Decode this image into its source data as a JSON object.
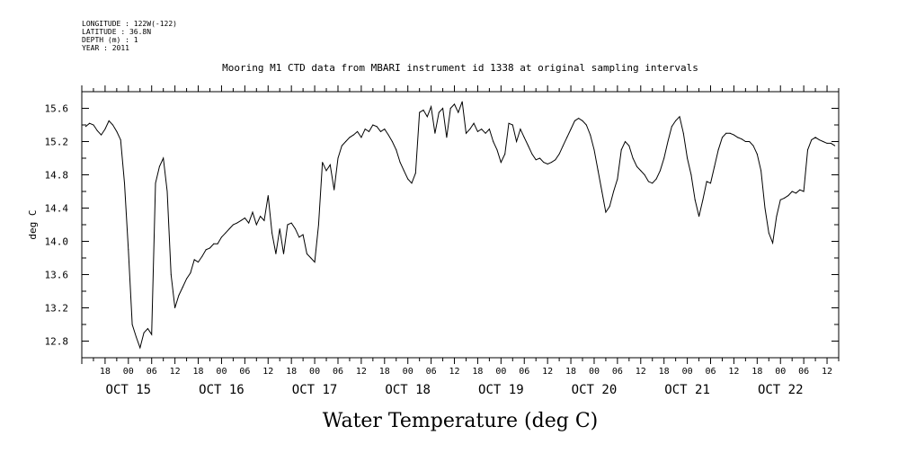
{
  "metadata": [
    "LONGITUDE : 122W(-122)",
    "LATITUDE : 36.8N",
    "DEPTH (m) : 1",
    "YEAR : 2011"
  ],
  "caption": "Water Temperature (deg C)",
  "chart_data": {
    "type": "line",
    "title": "Mooring M1 CTD data from MBARI instrument id 1338 at original sampling intervals",
    "xlabel": "",
    "ylabel": "deg C",
    "x_unit": "date-hour (2011)",
    "xlim": [
      "OCT 14 12:00",
      "OCT 22 15:00"
    ],
    "ylim": [
      12.6,
      15.8
    ],
    "y_ticks": [
      "12.8",
      "13.2",
      "13.6",
      "14.0",
      "14.4",
      "14.8",
      "15.2",
      "15.6"
    ],
    "hour_tick_labels": [
      "18",
      "00",
      "06",
      "12",
      "18",
      "00",
      "06",
      "12",
      "18",
      "00",
      "06",
      "12",
      "18",
      "00",
      "06",
      "12",
      "18",
      "00",
      "06",
      "12",
      "18",
      "00",
      "06",
      "12",
      "18",
      "00",
      "06",
      "12",
      "18",
      "00",
      "06",
      "12"
    ],
    "day_labels": [
      "OCT 15",
      "OCT 16",
      "OCT 17",
      "OCT 18",
      "OCT 19",
      "OCT 20",
      "OCT 21",
      "OCT 22"
    ],
    "grid": false,
    "series": [
      {
        "values": [
          [
            "OCT 14 13:00",
            15.38
          ],
          [
            "OCT 14 14:00",
            15.42
          ],
          [
            "OCT 14 15:00",
            15.4
          ],
          [
            "OCT 14 16:00",
            15.33
          ],
          [
            "OCT 14 17:00",
            15.28
          ],
          [
            "OCT 14 18:00",
            15.35
          ],
          [
            "OCT 14 19:00",
            15.45
          ],
          [
            "OCT 14 20:00",
            15.4
          ],
          [
            "OCT 14 21:00",
            15.32
          ],
          [
            "OCT 14 22:00",
            15.22
          ],
          [
            "OCT 14 23:00",
            14.7
          ],
          [
            "OCT 15 00:00",
            13.9
          ],
          [
            "OCT 15 01:00",
            13.0
          ],
          [
            "OCT 15 02:00",
            12.85
          ],
          [
            "OCT 15 03:00",
            12.72
          ],
          [
            "OCT 15 04:00",
            12.9
          ],
          [
            "OCT 15 05:00",
            12.95
          ],
          [
            "OCT 15 06:00",
            12.88
          ],
          [
            "OCT 15 07:00",
            14.7
          ],
          [
            "OCT 15 08:00",
            14.9
          ],
          [
            "OCT 15 09:00",
            15.0
          ],
          [
            "OCT 15 10:00",
            14.6
          ],
          [
            "OCT 15 11:00",
            13.6
          ],
          [
            "OCT 15 12:00",
            13.2
          ],
          [
            "OCT 15 13:00",
            13.35
          ],
          [
            "OCT 15 14:00",
            13.45
          ],
          [
            "OCT 15 15:00",
            13.55
          ],
          [
            "OCT 15 16:00",
            13.62
          ],
          [
            "OCT 15 17:00",
            13.78
          ],
          [
            "OCT 15 18:00",
            13.75
          ],
          [
            "OCT 15 19:00",
            13.82
          ],
          [
            "OCT 15 20:00",
            13.9
          ],
          [
            "OCT 15 21:00",
            13.92
          ],
          [
            "OCT 15 22:00",
            13.97
          ],
          [
            "OCT 15 23:00",
            13.97
          ],
          [
            "OCT 16 00:00",
            14.05
          ],
          [
            "OCT 16 01:00",
            14.1
          ],
          [
            "OCT 16 02:00",
            14.15
          ],
          [
            "OCT 16 03:00",
            14.2
          ],
          [
            "OCT 16 04:00",
            14.22
          ],
          [
            "OCT 16 05:00",
            14.25
          ],
          [
            "OCT 16 06:00",
            14.28
          ],
          [
            "OCT 16 07:00",
            14.22
          ],
          [
            "OCT 16 08:00",
            14.35
          ],
          [
            "OCT 16 09:00",
            14.2
          ],
          [
            "OCT 16 10:00",
            14.3
          ],
          [
            "OCT 16 11:00",
            14.25
          ],
          [
            "OCT 16 12:00",
            14.55
          ],
          [
            "OCT 16 13:00",
            14.1
          ],
          [
            "OCT 16 14:00",
            13.85
          ],
          [
            "OCT 16 15:00",
            14.15
          ],
          [
            "OCT 16 16:00",
            13.85
          ],
          [
            "OCT 16 17:00",
            14.2
          ],
          [
            "OCT 16 18:00",
            14.22
          ],
          [
            "OCT 16 19:00",
            14.15
          ],
          [
            "OCT 16 20:00",
            14.05
          ],
          [
            "OCT 16 21:00",
            14.08
          ],
          [
            "OCT 16 22:00",
            13.85
          ],
          [
            "OCT 16 23:00",
            13.8
          ],
          [
            "OCT 17 00:00",
            13.75
          ],
          [
            "OCT 17 01:00",
            14.2
          ],
          [
            "OCT 17 02:00",
            14.95
          ],
          [
            "OCT 17 03:00",
            14.85
          ],
          [
            "OCT 17 04:00",
            14.92
          ],
          [
            "OCT 17 05:00",
            14.62
          ],
          [
            "OCT 17 06:00",
            15.0
          ],
          [
            "OCT 17 07:00",
            15.15
          ],
          [
            "OCT 17 08:00",
            15.2
          ],
          [
            "OCT 17 09:00",
            15.25
          ],
          [
            "OCT 17 10:00",
            15.28
          ],
          [
            "OCT 17 11:00",
            15.32
          ],
          [
            "OCT 17 12:00",
            15.25
          ],
          [
            "OCT 17 13:00",
            15.35
          ],
          [
            "OCT 17 14:00",
            15.32
          ],
          [
            "OCT 17 15:00",
            15.4
          ],
          [
            "OCT 17 16:00",
            15.38
          ],
          [
            "OCT 17 17:00",
            15.32
          ],
          [
            "OCT 17 18:00",
            15.35
          ],
          [
            "OCT 17 19:00",
            15.28
          ],
          [
            "OCT 17 20:00",
            15.2
          ],
          [
            "OCT 17 21:00",
            15.1
          ],
          [
            "OCT 17 22:00",
            14.95
          ],
          [
            "OCT 17 23:00",
            14.85
          ],
          [
            "OCT 18 00:00",
            14.75
          ],
          [
            "OCT 18 01:00",
            14.7
          ],
          [
            "OCT 18 02:00",
            14.82
          ],
          [
            "OCT 18 03:00",
            15.55
          ],
          [
            "OCT 18 04:00",
            15.58
          ],
          [
            "OCT 18 05:00",
            15.5
          ],
          [
            "OCT 18 06:00",
            15.62
          ],
          [
            "OCT 18 07:00",
            15.3
          ],
          [
            "OCT 18 08:00",
            15.55
          ],
          [
            "OCT 18 09:00",
            15.6
          ],
          [
            "OCT 18 10:00",
            15.25
          ],
          [
            "OCT 18 11:00",
            15.6
          ],
          [
            "OCT 18 12:00",
            15.65
          ],
          [
            "OCT 18 13:00",
            15.55
          ],
          [
            "OCT 18 14:00",
            15.68
          ],
          [
            "OCT 18 15:00",
            15.3
          ],
          [
            "OCT 18 16:00",
            15.35
          ],
          [
            "OCT 18 17:00",
            15.42
          ],
          [
            "OCT 18 18:00",
            15.32
          ],
          [
            "OCT 18 19:00",
            15.35
          ],
          [
            "OCT 18 20:00",
            15.3
          ],
          [
            "OCT 18 21:00",
            15.35
          ],
          [
            "OCT 18 22:00",
            15.2
          ],
          [
            "OCT 18 23:00",
            15.1
          ],
          [
            "OCT 19 00:00",
            14.95
          ],
          [
            "OCT 19 01:00",
            15.05
          ],
          [
            "OCT 19 02:00",
            15.42
          ],
          [
            "OCT 19 03:00",
            15.4
          ],
          [
            "OCT 19 04:00",
            15.2
          ],
          [
            "OCT 19 05:00",
            15.35
          ],
          [
            "OCT 19 06:00",
            15.25
          ],
          [
            "OCT 19 07:00",
            15.15
          ],
          [
            "OCT 19 08:00",
            15.05
          ],
          [
            "OCT 19 09:00",
            14.98
          ],
          [
            "OCT 19 10:00",
            15.0
          ],
          [
            "OCT 19 11:00",
            14.95
          ],
          [
            "OCT 19 12:00",
            14.93
          ],
          [
            "OCT 19 13:00",
            14.95
          ],
          [
            "OCT 19 14:00",
            14.98
          ],
          [
            "OCT 19 15:00",
            15.05
          ],
          [
            "OCT 19 16:00",
            15.15
          ],
          [
            "OCT 19 17:00",
            15.25
          ],
          [
            "OCT 19 18:00",
            15.35
          ],
          [
            "OCT 19 19:00",
            15.45
          ],
          [
            "OCT 19 20:00",
            15.48
          ],
          [
            "OCT 19 21:00",
            15.45
          ],
          [
            "OCT 19 22:00",
            15.4
          ],
          [
            "OCT 19 23:00",
            15.28
          ],
          [
            "OCT 20 00:00",
            15.1
          ],
          [
            "OCT 20 01:00",
            14.85
          ],
          [
            "OCT 20 02:00",
            14.6
          ],
          [
            "OCT 20 03:00",
            14.35
          ],
          [
            "OCT 20 04:00",
            14.42
          ],
          [
            "OCT 20 05:00",
            14.6
          ],
          [
            "OCT 20 06:00",
            14.75
          ],
          [
            "OCT 20 07:00",
            15.1
          ],
          [
            "OCT 20 08:00",
            15.2
          ],
          [
            "OCT 20 09:00",
            15.15
          ],
          [
            "OCT 20 10:00",
            15.0
          ],
          [
            "OCT 20 11:00",
            14.9
          ],
          [
            "OCT 20 12:00",
            14.85
          ],
          [
            "OCT 20 13:00",
            14.8
          ],
          [
            "OCT 20 14:00",
            14.72
          ],
          [
            "OCT 20 15:00",
            14.7
          ],
          [
            "OCT 20 16:00",
            14.75
          ],
          [
            "OCT 20 17:00",
            14.85
          ],
          [
            "OCT 20 18:00",
            15.0
          ],
          [
            "OCT 20 19:00",
            15.2
          ],
          [
            "OCT 20 20:00",
            15.38
          ],
          [
            "OCT 20 21:00",
            15.45
          ],
          [
            "OCT 20 22:00",
            15.5
          ],
          [
            "OCT 20 23:00",
            15.3
          ],
          [
            "OCT 21 00:00",
            15.0
          ],
          [
            "OCT 21 01:00",
            14.8
          ],
          [
            "OCT 21 02:00",
            14.5
          ],
          [
            "OCT 21 03:00",
            14.3
          ],
          [
            "OCT 21 04:00",
            14.5
          ],
          [
            "OCT 21 05:00",
            14.72
          ],
          [
            "OCT 21 06:00",
            14.7
          ],
          [
            "OCT 21 07:00",
            14.9
          ],
          [
            "OCT 21 08:00",
            15.1
          ],
          [
            "OCT 21 09:00",
            15.25
          ],
          [
            "OCT 21 10:00",
            15.3
          ],
          [
            "OCT 21 11:00",
            15.3
          ],
          [
            "OCT 21 12:00",
            15.28
          ],
          [
            "OCT 21 13:00",
            15.25
          ],
          [
            "OCT 21 14:00",
            15.23
          ],
          [
            "OCT 21 15:00",
            15.2
          ],
          [
            "OCT 21 16:00",
            15.2
          ],
          [
            "OCT 21 17:00",
            15.15
          ],
          [
            "OCT 21 18:00",
            15.05
          ],
          [
            "OCT 21 19:00",
            14.85
          ],
          [
            "OCT 21 20:00",
            14.4
          ],
          [
            "OCT 21 21:00",
            14.1
          ],
          [
            "OCT 21 22:00",
            13.98
          ],
          [
            "OCT 21 23:00",
            14.3
          ],
          [
            "OCT 22 00:00",
            14.5
          ],
          [
            "OCT 22 01:00",
            14.52
          ],
          [
            "OCT 22 02:00",
            14.55
          ],
          [
            "OCT 22 03:00",
            14.6
          ],
          [
            "OCT 22 04:00",
            14.58
          ],
          [
            "OCT 22 05:00",
            14.62
          ],
          [
            "OCT 22 06:00",
            14.6
          ],
          [
            "OCT 22 07:00",
            15.1
          ],
          [
            "OCT 22 08:00",
            15.22
          ],
          [
            "OCT 22 09:00",
            15.25
          ],
          [
            "OCT 22 10:00",
            15.22
          ],
          [
            "OCT 22 11:00",
            15.2
          ],
          [
            "OCT 22 12:00",
            15.18
          ],
          [
            "OCT 22 13:00",
            15.18
          ],
          [
            "OCT 22 14:00",
            15.15
          ]
        ]
      }
    ]
  }
}
